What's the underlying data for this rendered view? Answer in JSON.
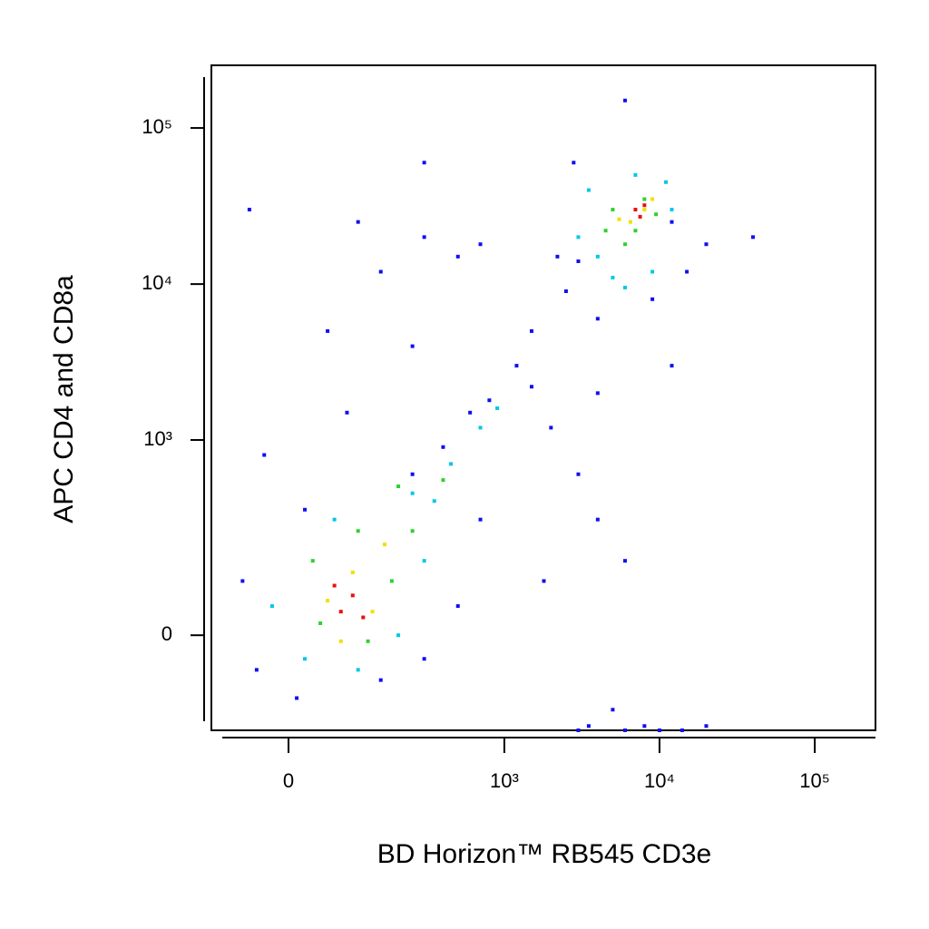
{
  "chart_data": {
    "type": "scatter",
    "xlabel": "BD Horizon™ RB545 CD3e",
    "ylabel": "APC CD4 and CD8a",
    "xscale": "biexponential",
    "yscale": "biexponential",
    "xlim": [
      -115,
      246000
    ],
    "ylim": [
      -215,
      252000
    ],
    "xticks": [
      0,
      {
        "value": 1000,
        "label": "10³"
      },
      {
        "value": 10000,
        "label": "10⁴"
      },
      {
        "value": 100000,
        "label": "10⁵"
      }
    ],
    "yticks": [
      0,
      {
        "value": 1000,
        "label": "10³"
      },
      {
        "value": 10000,
        "label": "10⁴"
      },
      {
        "value": 100000,
        "label": "10⁵"
      }
    ],
    "series": [
      {
        "color": "#1010f0",
        "x": [
          -40,
          10,
          150,
          300,
          500,
          -60,
          20,
          250,
          600,
          800,
          400,
          1500,
          2000,
          3000,
          4000,
          6000,
          5000,
          3500,
          8000,
          20000,
          1200,
          1500,
          2500,
          2200,
          12000,
          20000,
          40000,
          15000,
          9000,
          4000,
          -50,
          100,
          300,
          150,
          500,
          250,
          80,
          -30,
          700,
          1800,
          2800,
          6000,
          300,
          4000,
          12000,
          3000,
          700,
          50,
          3000,
          6000,
          10000,
          14000
        ],
        "values": [
          -60,
          -120,
          -80,
          -40,
          50,
          100,
          350,
          600,
          1500,
          1800,
          900,
          2200,
          1200,
          600,
          300,
          150,
          -150,
          -200,
          -200,
          -200,
          3000,
          5000,
          9000,
          15000,
          25000,
          18000,
          20000,
          12000,
          8000,
          6000,
          30000,
          25000,
          20000,
          12000,
          15000,
          4000,
          1500,
          800,
          300,
          100,
          60000,
          150000,
          60000,
          2000,
          3000,
          14000,
          18000,
          5000,
          -215,
          -215,
          -215,
          -215
        ]
      },
      {
        "color": "#00c8e8",
        "x": [
          20,
          100,
          200,
          300,
          350,
          450,
          700,
          900,
          -20,
          60,
          250,
          4000,
          5000,
          3000,
          9000,
          12000,
          3500,
          7000,
          11000,
          6000
        ],
        "values": [
          -40,
          -60,
          0,
          150,
          400,
          700,
          1200,
          1600,
          50,
          300,
          450,
          15000,
          11000,
          20000,
          12000,
          30000,
          40000,
          50000,
          45000,
          9500
        ]
      },
      {
        "color": "#30d030",
        "x": [
          40,
          120,
          180,
          100,
          250,
          200,
          400,
          30,
          4500,
          6000,
          8000,
          9500,
          5000,
          7000
        ],
        "values": [
          20,
          -10,
          100,
          250,
          250,
          500,
          550,
          150,
          22000,
          18000,
          35000,
          28000,
          30000,
          22000
        ]
      },
      {
        "color": "#f0e000",
        "x": [
          50,
          90,
          130,
          160,
          70,
          6500,
          8000,
          5500,
          9000
        ],
        "values": [
          60,
          120,
          40,
          200,
          -10,
          25000,
          30000,
          26000,
          35000
        ]
      },
      {
        "color": "#e81010",
        "x": [
          70,
          90,
          110,
          60,
          7000,
          8000,
          7500
        ],
        "values": [
          40,
          70,
          30,
          90,
          30000,
          32000,
          27000
        ]
      }
    ]
  }
}
